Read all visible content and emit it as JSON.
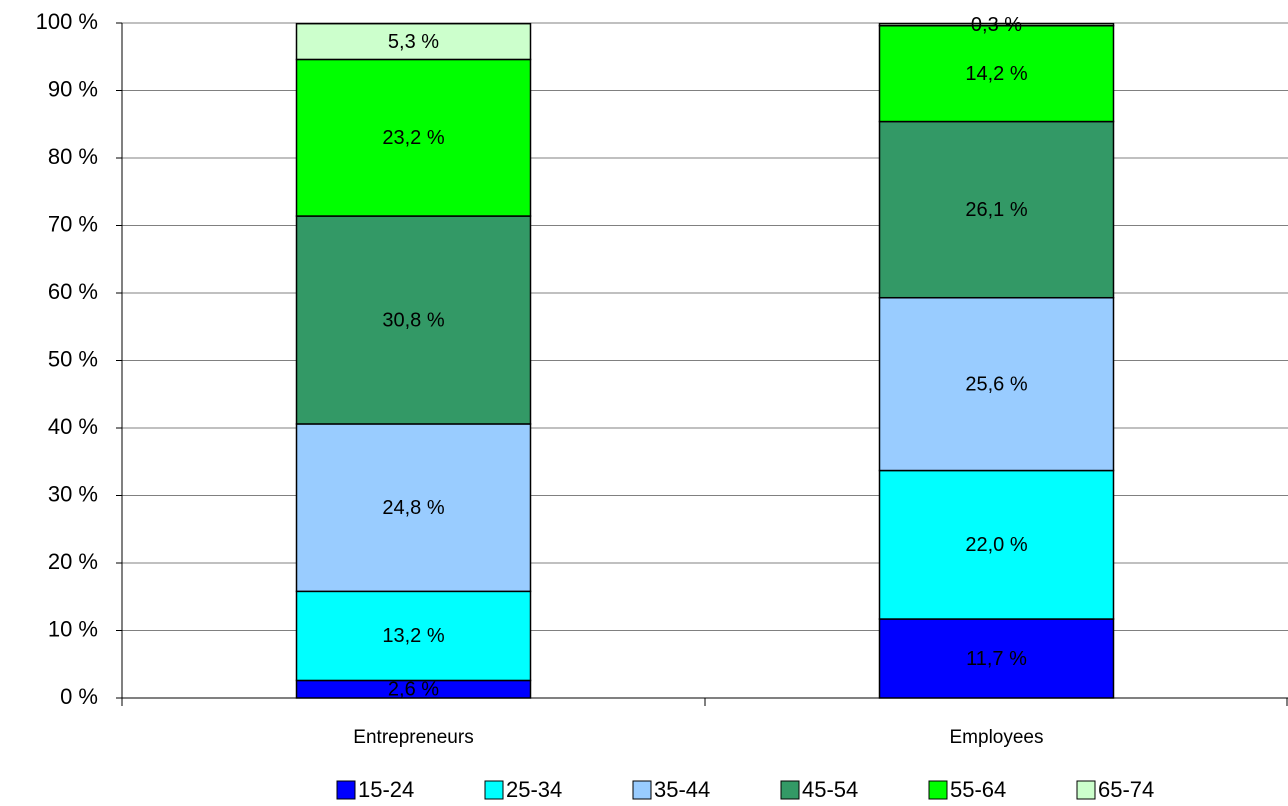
{
  "chart_data": {
    "type": "stacked_bar",
    "categories": [
      "Entrepreneurs",
      "Employees"
    ],
    "series": [
      {
        "name": "15-24",
        "color": "#0000ff",
        "values": [
          2.6,
          11.7
        ],
        "value_labels": [
          "2,6 %",
          "11,7 %"
        ]
      },
      {
        "name": "25-34",
        "color": "#00ffff",
        "values": [
          13.2,
          22.0
        ],
        "value_labels": [
          "13,2 %",
          "22,0 %"
        ]
      },
      {
        "name": "35-44",
        "color": "#99ccff",
        "values": [
          24.8,
          25.6
        ],
        "value_labels": [
          "24,8 %",
          "25,6 %"
        ]
      },
      {
        "name": "45-54",
        "color": "#339966",
        "values": [
          30.8,
          26.1
        ],
        "value_labels": [
          "30,8 %",
          "26,1 %"
        ]
      },
      {
        "name": "55-64",
        "color": "#00ff00",
        "values": [
          23.2,
          14.2
        ],
        "value_labels": [
          "23,2 %",
          "14,2 %"
        ]
      },
      {
        "name": "65-74",
        "color": "#ccffcc",
        "values": [
          5.3,
          0.3
        ],
        "value_labels": [
          "5,3 %",
          "0,3 %"
        ]
      }
    ],
    "ylim": [
      0,
      100
    ],
    "yticks": [
      {
        "value": 0,
        "label": "0 %"
      },
      {
        "value": 10,
        "label": "10 %"
      },
      {
        "value": 20,
        "label": "20 %"
      },
      {
        "value": 30,
        "label": "30 %"
      },
      {
        "value": 40,
        "label": "40 %"
      },
      {
        "value": 50,
        "label": "50 %"
      },
      {
        "value": 60,
        "label": "60 %"
      },
      {
        "value": 70,
        "label": "70 %"
      },
      {
        "value": 80,
        "label": "80 %"
      },
      {
        "value": 90,
        "label": "90 %"
      },
      {
        "value": 100,
        "label": "100 %"
      }
    ],
    "grid": true,
    "legend": "bottom"
  }
}
